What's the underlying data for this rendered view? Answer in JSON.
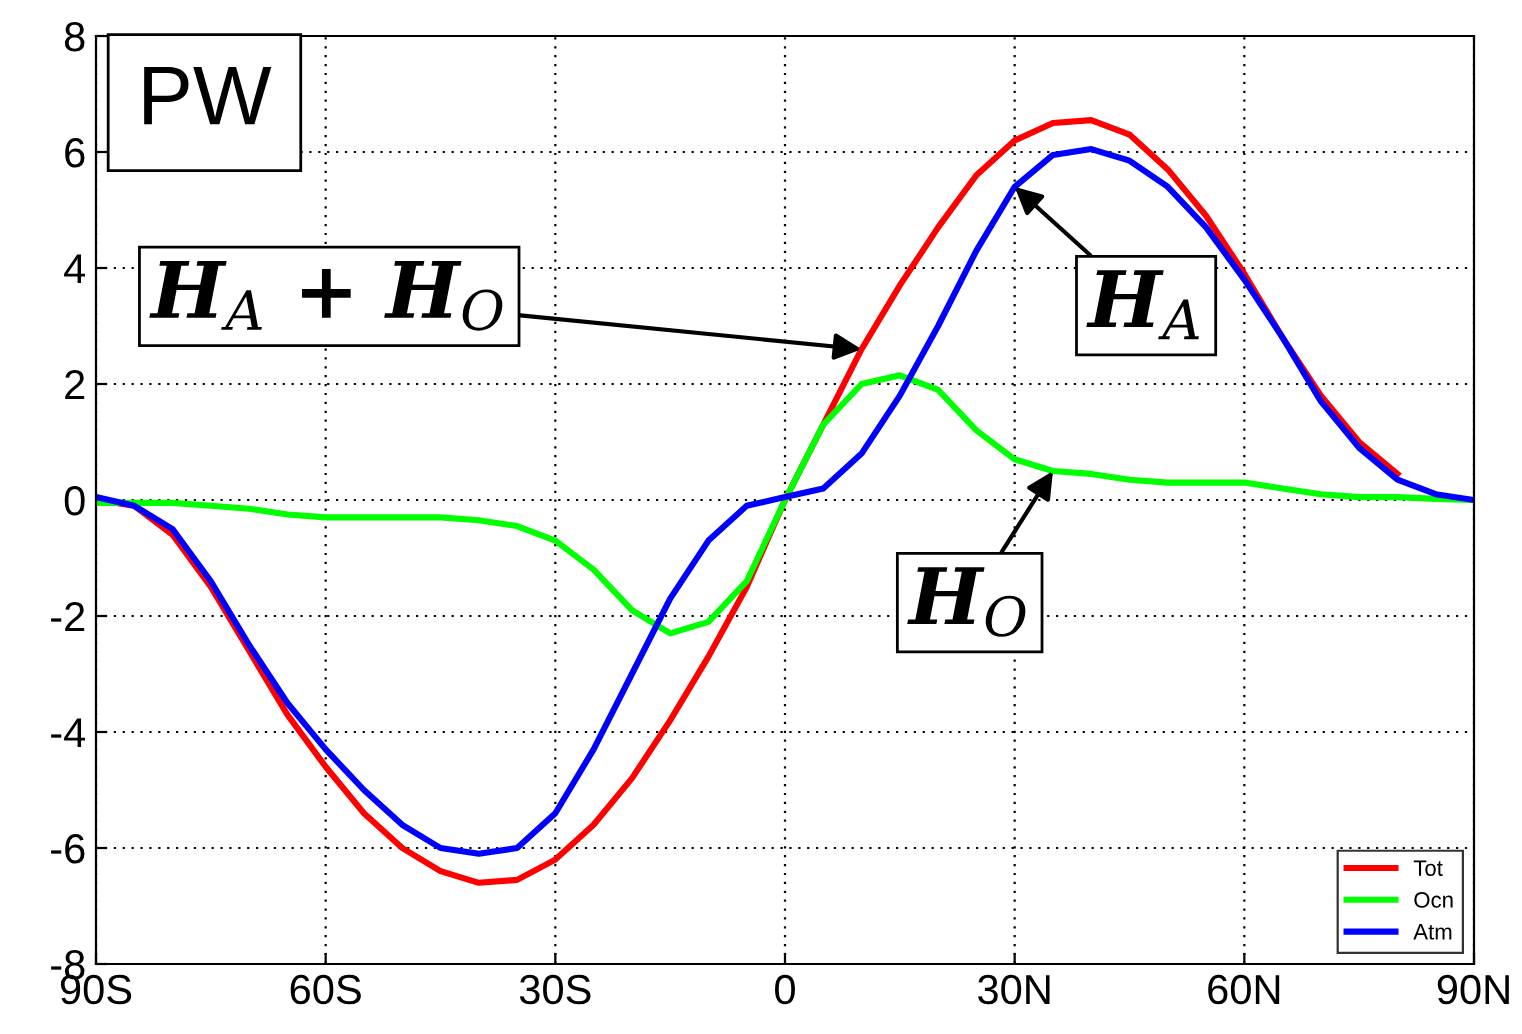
{
  "chart_data": {
    "type": "line",
    "x": [
      -90,
      -85,
      -80,
      -75,
      -70,
      -65,
      -60,
      -55,
      -50,
      -45,
      -40,
      -35,
      -30,
      -25,
      -20,
      -15,
      -10,
      -5,
      0,
      5,
      10,
      15,
      20,
      25,
      30,
      35,
      40,
      45,
      50,
      55,
      60,
      65,
      70,
      75,
      80,
      85,
      90
    ],
    "series": [
      {
        "name": "Tot",
        "color": "#ff0000",
        "values": [
          0,
          -0.1,
          -0.6,
          -1.5,
          -2.6,
          -3.7,
          -4.6,
          -5.4,
          -6.0,
          -6.4,
          -6.6,
          -6.55,
          -6.2,
          -5.6,
          -4.8,
          -3.8,
          -2.7,
          -1.5,
          0,
          1.3,
          2.6,
          3.7,
          4.7,
          5.6,
          6.2,
          6.5,
          6.55,
          6.3,
          5.7,
          4.9,
          3.9,
          2.8,
          1.8,
          1.0,
          0.45,
          null,
          null
        ]
      },
      {
        "name": "Ocn",
        "color": "#00ff00",
        "values": [
          -0.05,
          -0.05,
          -0.05,
          -0.1,
          -0.15,
          -0.25,
          -0.3,
          -0.3,
          -0.3,
          -0.3,
          -0.35,
          -0.45,
          -0.7,
          -1.2,
          -1.9,
          -2.3,
          -2.1,
          -1.4,
          0,
          1.3,
          2.0,
          2.15,
          1.9,
          1.2,
          0.7,
          0.5,
          0.45,
          0.35,
          0.3,
          0.3,
          0.3,
          0.2,
          0.1,
          0.05,
          0.05,
          0.02,
          0
        ]
      },
      {
        "name": "Atm",
        "color": "#0000ff",
        "values": [
          0.05,
          -0.1,
          -0.5,
          -1.4,
          -2.5,
          -3.5,
          -4.3,
          -5.0,
          -5.6,
          -6.0,
          -6.1,
          -6.0,
          -5.4,
          -4.3,
          -3.0,
          -1.7,
          -0.7,
          -0.1,
          0.05,
          0.2,
          0.8,
          1.8,
          3.0,
          4.3,
          5.4,
          5.95,
          6.05,
          5.85,
          5.4,
          4.7,
          3.8,
          2.8,
          1.7,
          0.9,
          0.35,
          0.1,
          0
        ]
      }
    ],
    "xlim": [
      -90,
      90
    ],
    "xticks": [
      {
        "value": -90,
        "label": "90S"
      },
      {
        "value": -60,
        "label": "60S"
      },
      {
        "value": -30,
        "label": "30S"
      },
      0,
      {
        "value": 30,
        "label": "30N"
      },
      {
        "value": 60,
        "label": "60N"
      },
      {
        "value": 90,
        "label": "90N"
      }
    ],
    "ylim": [
      -8,
      8
    ],
    "yticks": [
      -8,
      -6,
      -4,
      -2,
      0,
      2,
      4,
      6,
      8
    ],
    "grid": true,
    "legend": "bottom right",
    "annotations": [
      "PW",
      {
        "text": "H$_{A}$ + H$_{O}$",
        "x": 10,
        "y": 2.6
      },
      {
        "text": "H$_{A}$",
        "x": 30,
        "y": 5.4
      },
      {
        "text": "H$_{O}$",
        "x": 35,
        "y": 0.5
      }
    ]
  }
}
